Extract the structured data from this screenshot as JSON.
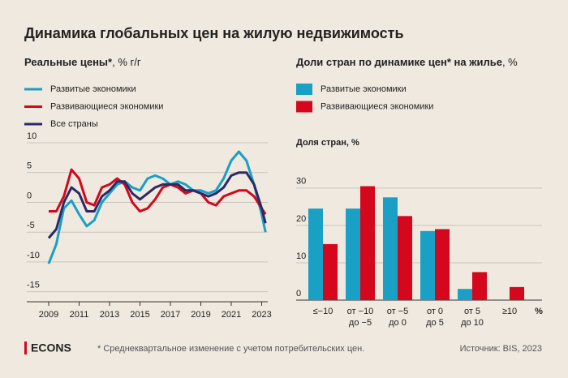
{
  "title": "Динамика глобальных цен на жилую недвижимость",
  "brand": "ECONS",
  "note": "* Среднеквартальное изменение с учетом потребительских цен.",
  "source": "Источник: BIS, 2023",
  "chart_data": [
    {
      "type": "line",
      "title": "Реальные цены*",
      "unit": ", % г/г",
      "x": [
        2009,
        2009.5,
        2010,
        2010.5,
        2011,
        2011.5,
        2012,
        2012.5,
        2013,
        2013.5,
        2014,
        2014.5,
        2015,
        2015.5,
        2016,
        2016.5,
        2017,
        2017.5,
        2018,
        2018.5,
        2019,
        2019.5,
        2020,
        2020.5,
        2021,
        2021.5,
        2022,
        2022.5,
        2023,
        2023.25
      ],
      "series": [
        {
          "name": "Развитые экономики",
          "color": "#1aa0c4",
          "values": [
            -10.3,
            -7,
            -1,
            0.3,
            -2,
            -4,
            -3,
            0,
            1.5,
            3,
            3.5,
            2.5,
            2,
            4,
            4.5,
            4,
            3,
            3.5,
            3,
            2,
            2,
            1.5,
            2,
            4,
            7,
            8.5,
            7,
            3,
            -2,
            -5
          ]
        },
        {
          "name": "Развивающиеся экономики",
          "color": "#d4071c",
          "values": [
            -1.5,
            -1.5,
            1,
            5.5,
            4,
            0,
            -0.5,
            2.5,
            3,
            4,
            3,
            0,
            -1.5,
            -1,
            0.5,
            2.5,
            3,
            2.5,
            1.5,
            2,
            1.5,
            0,
            -0.5,
            1,
            1.5,
            2,
            2,
            1,
            -1,
            -2
          ]
        },
        {
          "name": "Все страны",
          "color": "#2b2a66",
          "values": [
            -6,
            -4.5,
            0,
            2.5,
            1.5,
            -1.5,
            -1.5,
            1,
            2,
            3.5,
            3.5,
            1.5,
            0.5,
            1.5,
            2.5,
            3,
            3,
            3,
            2,
            2,
            1.5,
            1,
            1.5,
            2.5,
            4.5,
            5,
            5,
            3,
            -1,
            -3.5
          ]
        }
      ],
      "xlim": [
        2008.2,
        2023.4
      ],
      "xticks": [
        2009,
        2011,
        2013,
        2015,
        2017,
        2019,
        2021,
        2023
      ],
      "ylim": [
        -16,
        10
      ],
      "yticks": [
        -15,
        -10,
        -5,
        0,
        5,
        10
      ],
      "grid": true
    },
    {
      "type": "bar",
      "title": "Доли стран по динамике цен* на жилье",
      "unit": ", %",
      "ylabel": "Доля стран, %",
      "x_unit": "%",
      "categories": [
        [
          "≤−10"
        ],
        [
          "от −10",
          "до −5"
        ],
        [
          "от −5",
          "до 0"
        ],
        [
          "от 0",
          "до 5"
        ],
        [
          "от 5",
          "до 10"
        ],
        [
          "≥10"
        ]
      ],
      "series": [
        {
          "name": "Развитые экономики",
          "color": "#1aa0c4",
          "values": [
            24.5,
            24.5,
            27.5,
            18.5,
            3,
            null
          ]
        },
        {
          "name": "Развивающиеся экономики",
          "color": "#d4071c",
          "values": [
            15,
            30.5,
            22.5,
            19,
            7.5,
            3.5
          ]
        }
      ],
      "ylim": [
        0,
        33
      ],
      "yticks": [
        0,
        10,
        20,
        30
      ],
      "grid": true
    }
  ]
}
